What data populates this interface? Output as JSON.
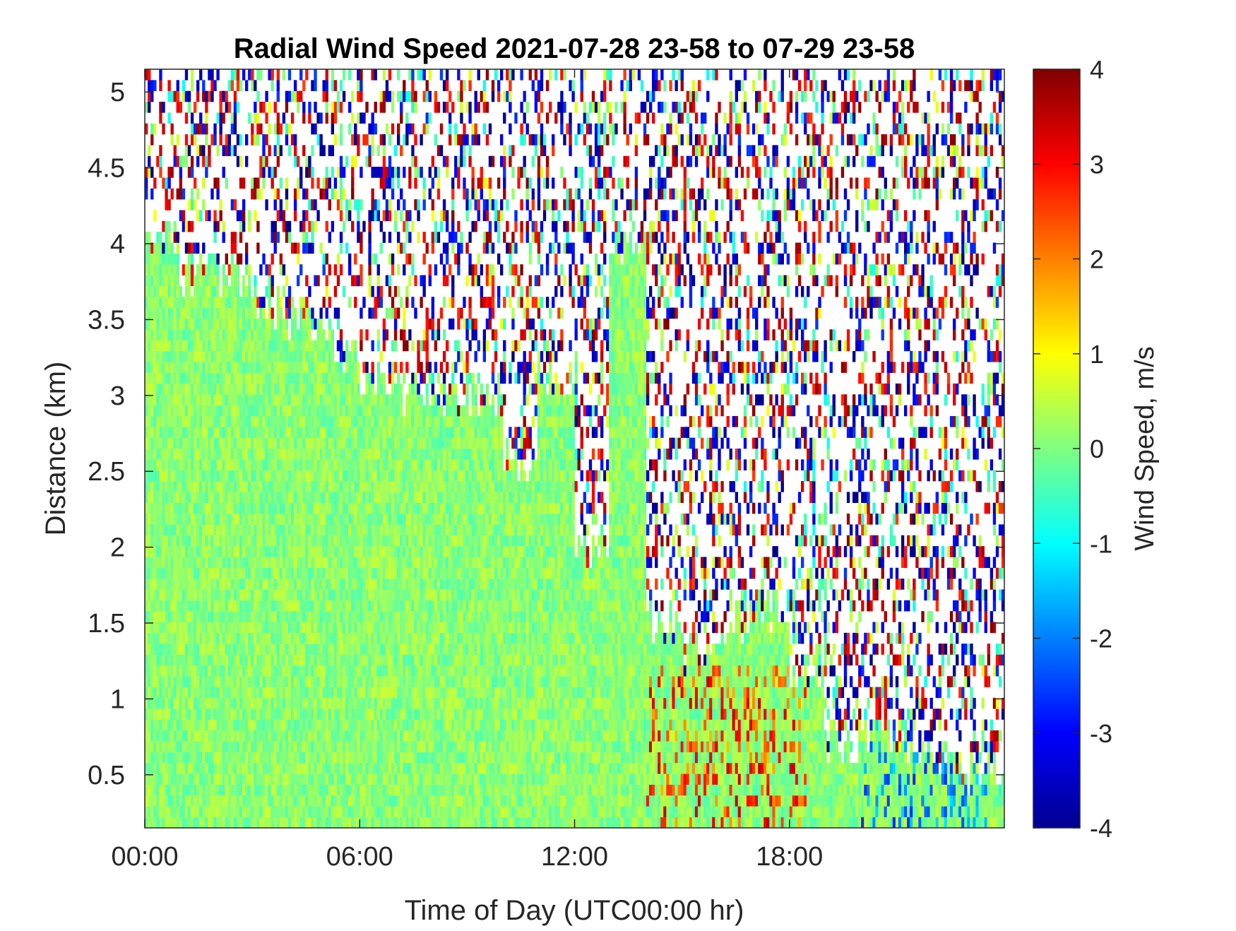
{
  "chart_data": {
    "type": "heatmap",
    "title": "Radial Wind Speed 2021-07-28 23-58 to 07-29 23-58",
    "xlabel": "Time of Day (UTC00:00 hr)",
    "ylabel": "Distance (km)",
    "colorbar_label": "Wind Speed, m/s",
    "colormap": "jet",
    "x_tick_labels": [
      "00:00",
      "06:00",
      "12:00",
      "18:00"
    ],
    "x_tick_values": [
      0,
      6,
      12,
      18
    ],
    "xlim": [
      0,
      24
    ],
    "y_tick_labels": [
      "0.5",
      "1",
      "1.5",
      "2",
      "2.5",
      "3",
      "3.5",
      "4",
      "4.5",
      "5"
    ],
    "y_tick_values": [
      0.5,
      1,
      1.5,
      2,
      2.5,
      3,
      3.5,
      4,
      4.5,
      5
    ],
    "ylim": [
      0.15,
      5.15
    ],
    "clim": [
      -4,
      4
    ],
    "colorbar_tick_labels": [
      "4",
      "3",
      "2",
      "1",
      "0",
      "-1",
      "-2",
      "-3",
      "-4"
    ],
    "colorbar_tick_values": [
      4,
      3,
      2,
      1,
      0,
      -1,
      -2,
      -3,
      -4
    ],
    "grid": false,
    "signal_top_km_by_hour": [
      {
        "hour": 0,
        "top": 4.0
      },
      {
        "hour": 1,
        "top": 3.8
      },
      {
        "hour": 2,
        "top": 3.8
      },
      {
        "hour": 3,
        "top": 3.6
      },
      {
        "hour": 4,
        "top": 3.5
      },
      {
        "hour": 5,
        "top": 3.3
      },
      {
        "hour": 6,
        "top": 3.1
      },
      {
        "hour": 7,
        "top": 3.0
      },
      {
        "hour": 8,
        "top": 3.0
      },
      {
        "hour": 9,
        "top": 3.0
      },
      {
        "hour": 10,
        "top": 2.5
      },
      {
        "hour": 11,
        "top": 3.1
      },
      {
        "hour": 12,
        "top": 2.0
      },
      {
        "hour": 13,
        "top": 4.0
      },
      {
        "hour": 14,
        "top": 1.5
      },
      {
        "hour": 15,
        "top": 1.3
      },
      {
        "hour": 16,
        "top": 1.5
      },
      {
        "hour": 17,
        "top": 1.6
      },
      {
        "hour": 18,
        "top": 1.2
      },
      {
        "hour": 19,
        "top": 0.7
      },
      {
        "hour": 20,
        "top": 0.8
      },
      {
        "hour": 21,
        "top": 0.7
      },
      {
        "hour": 22,
        "top": 0.6
      },
      {
        "hour": 23,
        "top": 0.5
      }
    ]
  }
}
